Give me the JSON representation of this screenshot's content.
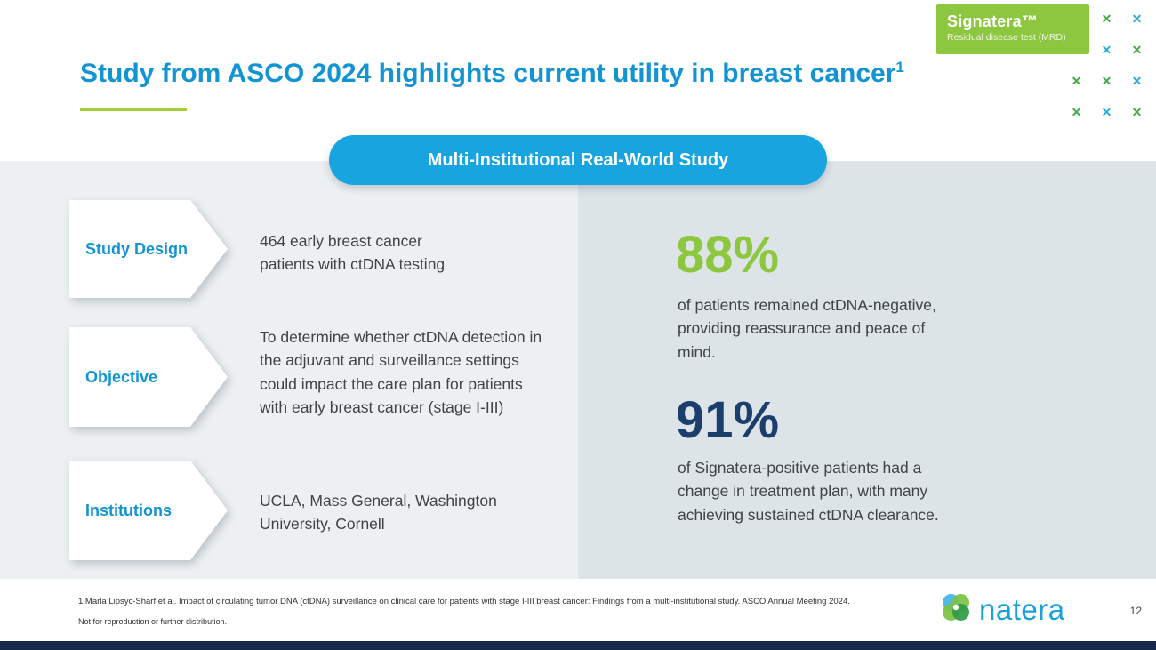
{
  "colors": {
    "green": "#43aa49",
    "blue": "#29abe2",
    "lime": "#8dc63f",
    "title_blue": "#1294d3",
    "banner_blue": "#18a4de",
    "navy": "#1b3e6d",
    "bottom_bar": "#16294d"
  },
  "badge": {
    "brand": "Signatera™",
    "subtitle": "Residual disease test (MRD)"
  },
  "decorative_x": {
    "glyph": "✕",
    "rows": [
      [
        "green",
        "blue"
      ],
      [
        "blue",
        "green"
      ],
      [
        "green",
        "green",
        "blue"
      ],
      [
        "green",
        "blue",
        "green"
      ]
    ]
  },
  "title": {
    "text": "Study from ASCO 2024 highlights current utility in breast cancer",
    "superscript": "1"
  },
  "banner": {
    "label": "Multi-Institutional Real-World Study"
  },
  "study_rows": [
    {
      "label": "Study Design",
      "text": "464 early breast cancer patients with ctDNA testing"
    },
    {
      "label": "Objective",
      "text": "To determine whether ctDNA detection in the adjuvant and surveillance settings could impact the care plan for patients with early breast cancer (stage I-III)"
    },
    {
      "label": "Institutions",
      "text": "UCLA, Mass General, Washington University, Cornell"
    }
  ],
  "stats": [
    {
      "value": "88%",
      "color": "#8dc63f",
      "description": "of patients remained ctDNA-negative, providing reassurance and peace of mind."
    },
    {
      "value": "91%",
      "color": "#1b3e6d",
      "description": "of Signatera-positive patients had a change in treatment plan, with many achieving sustained ctDNA clearance."
    }
  ],
  "footer": {
    "footnote": "1.Marla Lipsyc-Sharf et al. Impact of circulating tumor DNA (ctDNA) surveillance on clinical care for patients with stage I-III breast cancer: Findings from a multi-institutional study. ASCO Annual Meeting 2024.",
    "disclaimer": "Not for reproduction or further distribution.",
    "logo_text": "natera",
    "page_number": "12"
  }
}
